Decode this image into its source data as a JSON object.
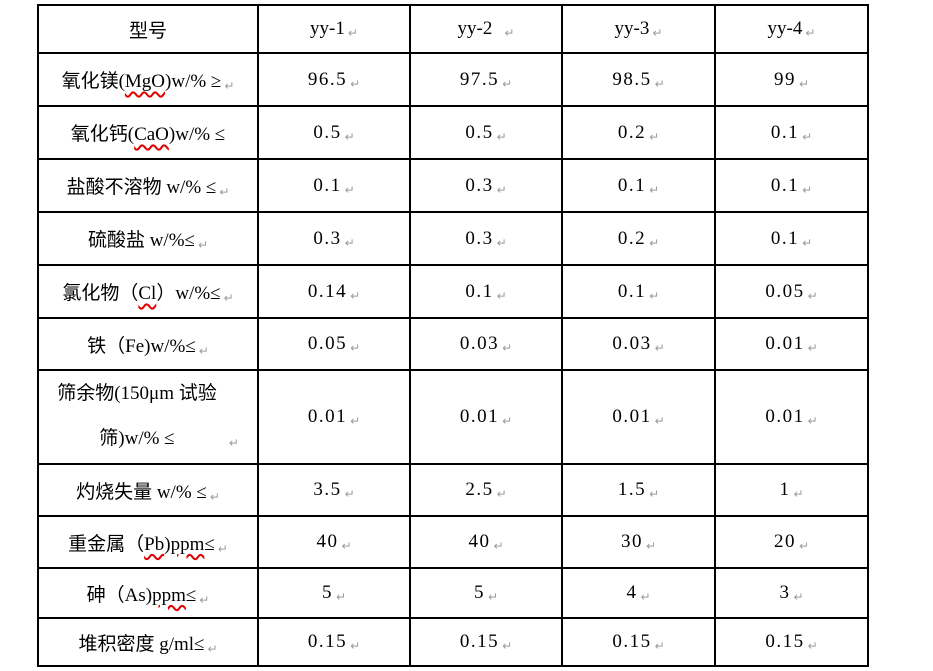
{
  "colors": {
    "border": "#000000",
    "text": "#000000",
    "paragraph_mark": "#9b9b9b",
    "squiggle": "#e00000",
    "page_background": "#ffffff"
  },
  "table": {
    "paragraph_mark": "↵",
    "header": {
      "model_label": "型号",
      "columns": [
        {
          "text": "yy-1",
          "mark": true
        },
        {
          "text": "yy-2",
          "mark": true,
          "gap": true
        },
        {
          "text": "yy-3",
          "mark": true
        },
        {
          "text": "yy-4",
          "mark": true
        }
      ]
    },
    "rows": [
      {
        "label_parts": [
          {
            "text": "氧化镁("
          },
          {
            "text": "MgO",
            "misspelled": true
          },
          {
            "text": ")w/% ≥"
          }
        ],
        "label_mark": true,
        "values": [
          "96.5",
          "97.5",
          "98.5",
          "99"
        ]
      },
      {
        "label_parts": [
          {
            "text": "氧化钙("
          },
          {
            "text": "CaO",
            "misspelled": true
          },
          {
            "text": ")w/% ≤"
          }
        ],
        "label_mark": false,
        "values": [
          "0.5",
          "0.5",
          "0.2",
          "0.1"
        ]
      },
      {
        "label_parts": [
          {
            "text": "盐酸不溶物 w/% ≤"
          }
        ],
        "label_mark": true,
        "values": [
          "0.1",
          "0.3",
          "0.1",
          "0.1"
        ]
      },
      {
        "label_parts": [
          {
            "text": "硫酸盐 w/%≤"
          }
        ],
        "label_mark": true,
        "values": [
          "0.3",
          "0.3",
          "0.2",
          "0.1"
        ]
      },
      {
        "label_parts": [
          {
            "text": "氯化物（"
          },
          {
            "text": "Cl",
            "misspelled": true
          },
          {
            "text": "）w/%≤"
          }
        ],
        "label_mark": true,
        "values": [
          "0.14",
          "0.1",
          "0.1",
          "0.05"
        ]
      },
      {
        "label_parts": [
          {
            "text": "铁（Fe)w/%≤"
          }
        ],
        "label_mark": true,
        "values": [
          "0.05",
          "0.03",
          "0.03",
          "0.01"
        ]
      },
      {
        "label_parts": [
          {
            "text": "筛余物(150μm 试验\n筛)w/% ≤"
          }
        ],
        "label_mark": true,
        "label_mark_gap": true,
        "tall": true,
        "values": [
          "0.01",
          "0.01",
          "0.01",
          "0.01"
        ]
      },
      {
        "label_parts": [
          {
            "text": "灼烧失量 w/% ≤"
          }
        ],
        "label_mark": true,
        "values": [
          "3.5",
          "2.5",
          "1.5",
          "1"
        ]
      },
      {
        "label_parts": [
          {
            "text": "重金属（"
          },
          {
            "text": "Pb",
            "misspelled": true
          },
          {
            "text": ")"
          },
          {
            "text": "ppm",
            "misspelled": true
          },
          {
            "text": "≤"
          }
        ],
        "label_mark": true,
        "values": [
          "40",
          "40",
          "30",
          "20"
        ]
      },
      {
        "label_parts": [
          {
            "text": "砷（As)"
          },
          {
            "text": "ppm",
            "misspelled": true
          },
          {
            "text": "≤"
          }
        ],
        "label_mark": true,
        "values": [
          "5",
          "5",
          "4",
          "3"
        ]
      },
      {
        "label_parts": [
          {
            "text": "堆积密度 g/ml≤"
          }
        ],
        "label_mark": true,
        "values": [
          "0.15",
          "0.15",
          "0.15",
          "0.15"
        ]
      }
    ]
  }
}
